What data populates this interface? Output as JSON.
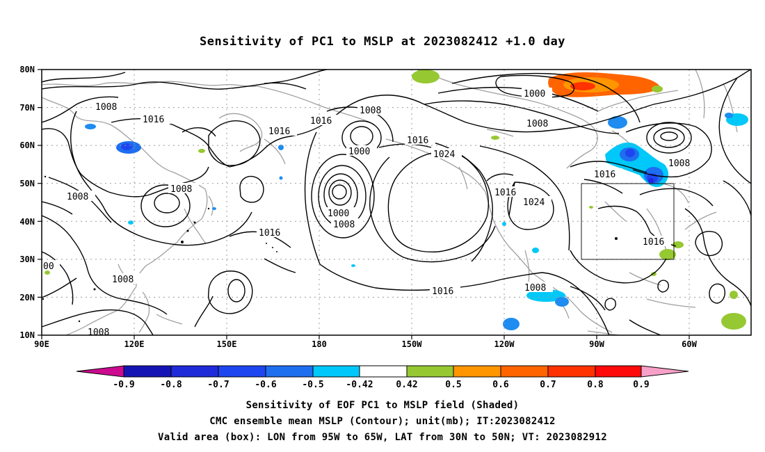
{
  "title": "Sensitivity of PC1 to MSLP at 2023082412 +1.0 day",
  "lat_labels": [
    "80N",
    "70N",
    "60N",
    "50N",
    "40N",
    "30N",
    "20N",
    "10N"
  ],
  "lon_labels": [
    "90E",
    "120E",
    "150E",
    "180",
    "150W",
    "120W",
    "90W",
    "60W"
  ],
  "contour_labels": [
    "1008",
    "1016",
    "1016",
    "1016",
    "1008",
    "1000",
    "1016",
    "1024",
    "1000",
    "1008",
    "1008",
    "1016",
    "1008",
    "1008",
    "1016",
    "1008",
    "1000",
    "1008",
    "1016",
    "1024",
    "1016",
    "1008",
    "1008",
    "1016",
    "1008",
    "00"
  ],
  "colorbar": {
    "labels": [
      "-0.9",
      "-0.8",
      "-0.7",
      "-0.6",
      "-0.5",
      "-0.42",
      "0.42",
      "0.5",
      "0.6",
      "0.7",
      "0.8",
      "0.9"
    ],
    "colors": [
      "#cc0a8f",
      "#1414b4",
      "#1f2ad8",
      "#1e46f0",
      "#1e6ef0",
      "#1e8cf0",
      "#00c8f8",
      "#ffffff",
      "#96c832",
      "#ff9600",
      "#ff6400",
      "#ff3200",
      "#ff0a0a",
      "#f8a0c8"
    ]
  },
  "valid_box": {
    "lon_from": "95W",
    "lon_to": "65W",
    "lat_from": "30N",
    "lat_to": "50N"
  },
  "footer": {
    "line1": "Sensitivity of EOF PC1 to MSLP field (Shaded)",
    "line2": "CMC ensemble mean MSLP (Contour); unit(mb); IT:2023082412",
    "line3": "Valid area (box): LON from 95W to 65W, LAT from 30N to 50N; VT: 2023082912"
  }
}
